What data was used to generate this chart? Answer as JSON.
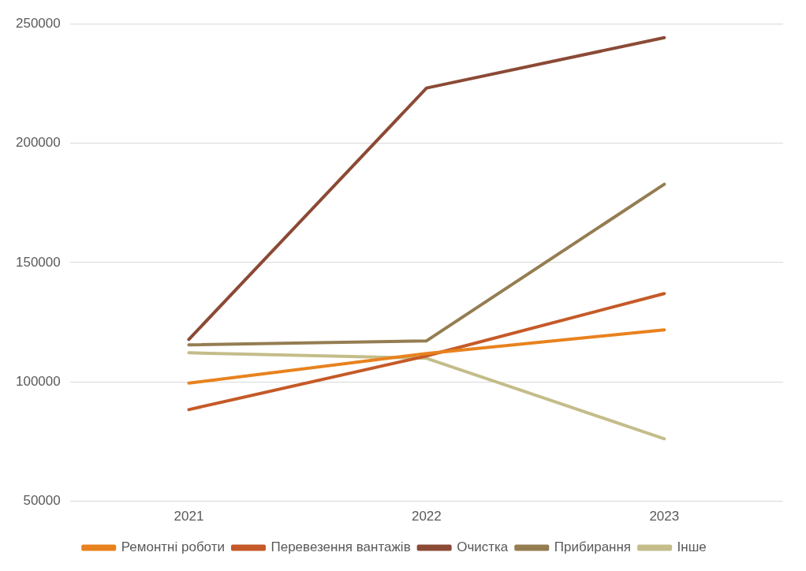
{
  "chart_data": {
    "type": "line",
    "categories": [
      "2021",
      "2022",
      "2023"
    ],
    "series": [
      {
        "name": "Ремонтні роботи",
        "color": "#e8821e",
        "values": [
          99500,
          111900,
          121800
        ]
      },
      {
        "name": "Перевезення вантажів",
        "color": "#c55a28",
        "values": [
          88400,
          110900,
          137000
        ]
      },
      {
        "name": "Очистка",
        "color": "#8b4a36",
        "values": [
          117800,
          223100,
          244200
        ]
      },
      {
        "name": "Прибирання",
        "color": "#957d52",
        "values": [
          115500,
          117200,
          182800
        ]
      },
      {
        "name": "Інше",
        "color": "#c4bd8a",
        "values": [
          112200,
          109900,
          76200
        ]
      }
    ],
    "ylim": [
      50000,
      250000
    ],
    "yticks": [
      50000,
      100000,
      150000,
      200000,
      250000
    ],
    "grid": "y",
    "legend": "bottom",
    "marker": "none",
    "line_style": "solid"
  }
}
